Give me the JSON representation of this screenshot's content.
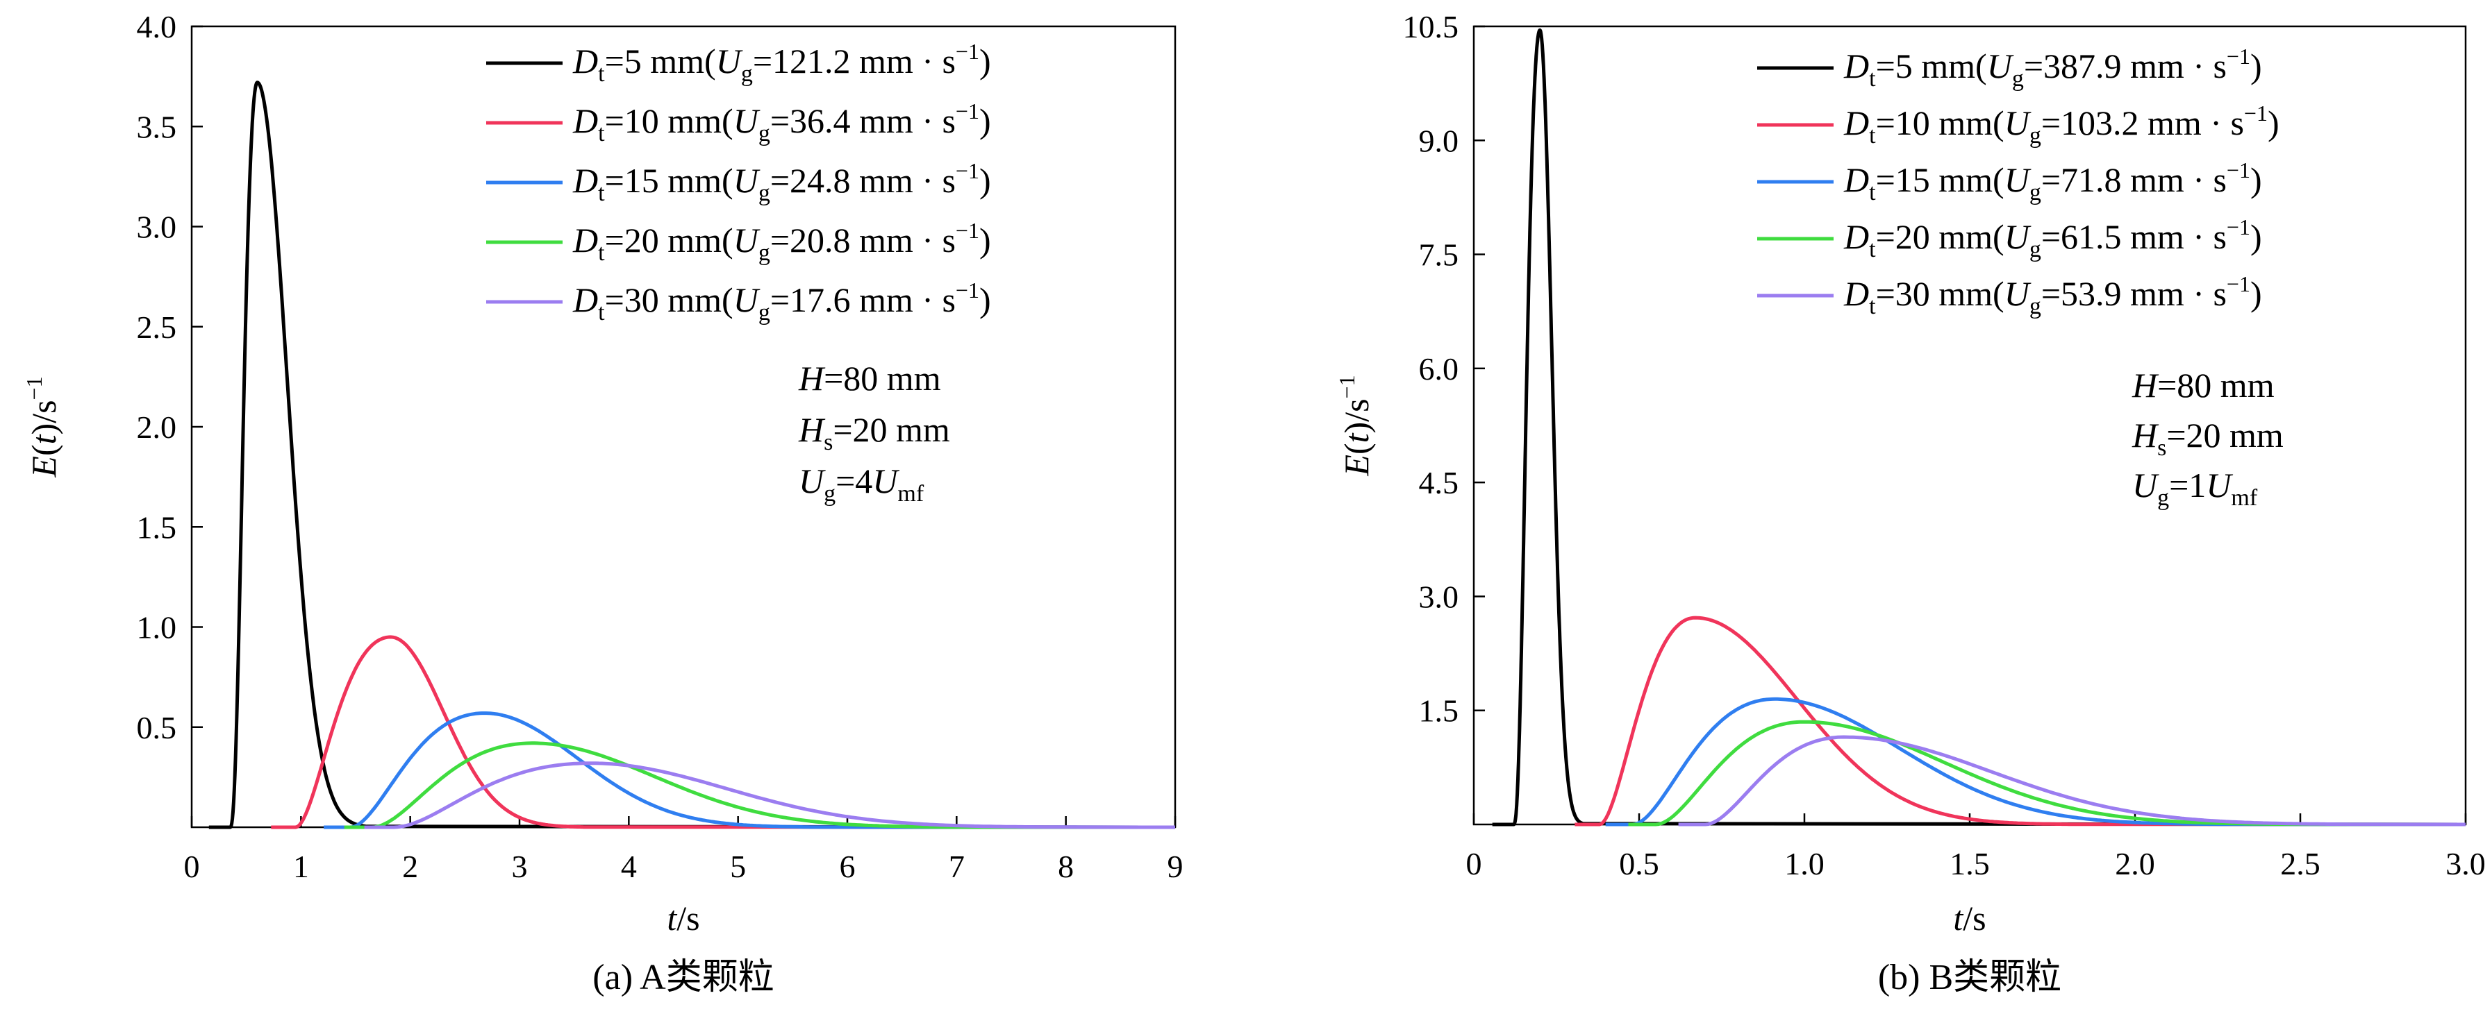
{
  "colors": {
    "black": "#000000",
    "red": "#f0345a",
    "blue": "#2f7ef0",
    "green": "#3fdc3f",
    "purple": "#9b7df0"
  },
  "chart_data": [
    {
      "type": "line",
      "caption": "(a) A类颗粒",
      "xlabel": {
        "var": "t",
        "unit": "/s"
      },
      "ylabel": {
        "func": "E",
        "arg": "t",
        "unit": "/s",
        "unit_exp": "−1"
      },
      "xlim": [
        0,
        9
      ],
      "ylim": [
        0,
        4.0
      ],
      "xticks": [
        0,
        1,
        2,
        3,
        4,
        5,
        6,
        7,
        8,
        9
      ],
      "xtick_labels": [
        "0",
        "1",
        "2",
        "3",
        "4",
        "5",
        "6",
        "7",
        "8",
        "9"
      ],
      "yticks": [
        0.5,
        1.0,
        1.5,
        2.0,
        2.5,
        3.0,
        3.5,
        4.0
      ],
      "ytick_labels": [
        "0.5",
        "1.0",
        "1.5",
        "2.0",
        "2.5",
        "3.0",
        "3.5",
        "4.0"
      ],
      "annotation": {
        "H": "=80 mm",
        "Hs": "=20 mm",
        "Ug_prefix": "=4",
        "Ug_sub": "mf"
      },
      "series": [
        {
          "name": "Dt=5 mm",
          "Dt": "=5 mm(",
          "Ug": "=121.2 mm · s",
          "exp": "−1",
          "close": ")",
          "color": "black",
          "start": 0.35,
          "peak_t": 0.6,
          "peak": 3.72,
          "end": 1.6,
          "k": 3
        },
        {
          "name": "Dt=10 mm",
          "Dt": "=10 mm(",
          "Ug": "=36.4 mm · s",
          "exp": "−1",
          "close": ")",
          "color": "red",
          "start": 0.95,
          "peak_t": 1.82,
          "peak": 0.95,
          "end": 3.6,
          "k": 2
        },
        {
          "name": "Dt=15 mm",
          "Dt": "=15 mm(",
          "Ug": "=24.8 mm · s",
          "exp": "−1",
          "close": ")",
          "color": "blue",
          "start": 1.45,
          "peak_t": 2.68,
          "peak": 0.57,
          "end": 5.8,
          "k": 2
        },
        {
          "name": "Dt=20 mm",
          "Dt": "=20 mm(",
          "Ug": "=20.8 mm · s",
          "exp": "−1",
          "close": ")",
          "color": "green",
          "start": 1.65,
          "peak_t": 3.12,
          "peak": 0.42,
          "end": 7.2,
          "k": 2
        },
        {
          "name": "Dt=30 mm",
          "Dt": "=30 mm(",
          "Ug": "=17.6 mm · s",
          "exp": "−1",
          "close": ")",
          "color": "purple",
          "start": 1.85,
          "peak_t": 3.65,
          "peak": 0.32,
          "end": 8.2,
          "k": 2
        }
      ]
    },
    {
      "type": "line",
      "caption": "(b) B类颗粒",
      "xlabel": {
        "var": "t",
        "unit": "/s"
      },
      "ylabel": {
        "func": "E",
        "arg": "t",
        "unit": "/s",
        "unit_exp": "−1"
      },
      "xlim": [
        0,
        3.0
      ],
      "ylim": [
        0,
        10.5
      ],
      "xticks": [
        0,
        0.5,
        1.0,
        1.5,
        2.0,
        2.5,
        3.0
      ],
      "xtick_labels": [
        "0",
        "0.5",
        "1.0",
        "1.5",
        "2.0",
        "2.5",
        "3.0"
      ],
      "yticks": [
        1.5,
        3.0,
        4.5,
        6.0,
        7.5,
        9.0,
        10.5
      ],
      "ytick_labels": [
        "1.5",
        "3.0",
        "4.5",
        "6.0",
        "7.5",
        "9.0",
        "10.5"
      ],
      "annotation": {
        "H": "=80 mm",
        "Hs": "=20 mm",
        "Ug_prefix": "=1",
        "Ug_sub": "mf"
      },
      "series": [
        {
          "name": "Dt=5 mm",
          "Dt": "=5 mm(",
          "Ug": "=387.9 mm · s",
          "exp": "−1",
          "close": ")",
          "color": "black",
          "start": 0.12,
          "peak_t": 0.2,
          "peak": 10.45,
          "end": 0.33,
          "k": 3
        },
        {
          "name": "Dt=10 mm",
          "Dt": "=10 mm(",
          "Ug": "=103.2 mm · s",
          "exp": "−1",
          "close": ")",
          "color": "red",
          "start": 0.38,
          "peak_t": 0.67,
          "peak": 2.72,
          "end": 1.8,
          "k": 2
        },
        {
          "name": "Dt=15 mm",
          "Dt": "=15 mm(",
          "Ug": "=71.8 mm · s",
          "exp": "−1",
          "close": ")",
          "color": "blue",
          "start": 0.48,
          "peak_t": 0.91,
          "peak": 1.65,
          "end": 2.3,
          "k": 2
        },
        {
          "name": "Dt=20 mm",
          "Dt": "=20 mm(",
          "Ug": "=61.5 mm · s",
          "exp": "−1",
          "close": ")",
          "color": "green",
          "start": 0.55,
          "peak_t": 1.0,
          "peak": 1.35,
          "end": 2.55,
          "k": 2
        },
        {
          "name": "Dt=30 mm",
          "Dt": "=30 mm(",
          "Ug": "=53.9 mm · s",
          "exp": "−1",
          "close": ")",
          "color": "purple",
          "start": 0.7,
          "peak_t": 1.12,
          "peak": 1.15,
          "end": 2.75,
          "k": 2
        }
      ]
    }
  ]
}
